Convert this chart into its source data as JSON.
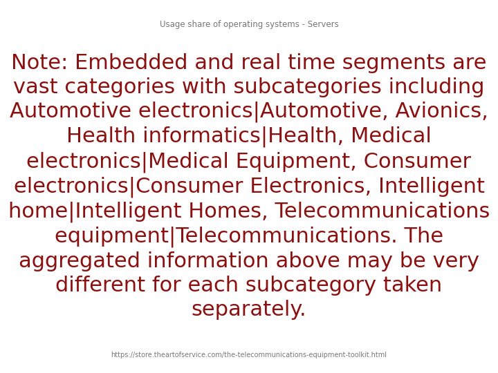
{
  "title": "Usage share of operating systems - Servers",
  "title_color": "#777777",
  "title_fontsize": 8.5,
  "main_text": "Note: Embedded and real time segments are\nvast categories with subcategories including\nAutomotive electronics|Automotive, Avionics,\nHealth informatics|Health, Medical\nelectronics|Medical Equipment, Consumer\nelectronics|Consumer Electronics, Intelligent\nhome|Intelligent Homes, Telecommunications\nequipment|Telecommunications. The\naggregated information above may be very\ndifferent for each subcategory taken\nseparately.",
  "main_text_color": "#8B1010",
  "main_text_fontsize": 22,
  "footer_text": "https://store.theartofservice.com/the-telecommunications-equipment-toolkit.html",
  "footer_color": "#777777",
  "footer_fontsize": 7.0,
  "background_color": "#ffffff"
}
